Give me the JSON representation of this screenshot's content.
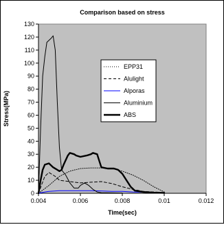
{
  "chart_data": {
    "type": "line",
    "title": "Comparison based on stress",
    "xlabel": "Time(sec)",
    "ylabel": "Stress(MPa)",
    "xlim": [
      0.004,
      0.012
    ],
    "ylim": [
      0,
      130
    ],
    "x_ticks": [
      "0.004",
      "0.006",
      "0.008",
      "0.01",
      "0.012"
    ],
    "y_ticks": [
      "0",
      "10",
      "20",
      "30",
      "40",
      "50",
      "60",
      "70",
      "80",
      "90",
      "100",
      "110",
      "120",
      "130"
    ],
    "grid": false,
    "legend_position": "right",
    "plot_background": "#c0c0c0",
    "series": [
      {
        "name": "EPP31",
        "style": "dotted",
        "color": "#000000",
        "points": [
          [
            0.004,
            0
          ],
          [
            0.0045,
            6
          ],
          [
            0.005,
            13
          ],
          [
            0.0055,
            17
          ],
          [
            0.006,
            19
          ],
          [
            0.0065,
            19.5
          ],
          [
            0.007,
            19.5
          ],
          [
            0.0075,
            19
          ],
          [
            0.008,
            17
          ],
          [
            0.0085,
            14
          ],
          [
            0.009,
            10
          ],
          [
            0.0095,
            5
          ],
          [
            0.01,
            1
          ]
        ]
      },
      {
        "name": "Alulight",
        "style": "dashed",
        "color": "#000000",
        "points": [
          [
            0.004,
            0
          ],
          [
            0.0043,
            13
          ],
          [
            0.0045,
            16
          ],
          [
            0.0048,
            13
          ],
          [
            0.005,
            10
          ],
          [
            0.0055,
            9
          ],
          [
            0.006,
            8
          ],
          [
            0.0065,
            8.5
          ],
          [
            0.007,
            9
          ],
          [
            0.0075,
            7.5
          ],
          [
            0.008,
            5
          ],
          [
            0.0085,
            3
          ],
          [
            0.009,
            1.5
          ],
          [
            0.0095,
            1
          ],
          [
            0.01,
            0.5
          ]
        ]
      },
      {
        "name": "Alporas",
        "style": "solid",
        "color": "#0000ff",
        "points": [
          [
            0.004,
            0
          ],
          [
            0.0043,
            1
          ],
          [
            0.0045,
            1.5
          ],
          [
            0.005,
            2
          ],
          [
            0.0055,
            2
          ],
          [
            0.006,
            2
          ],
          [
            0.0065,
            2
          ],
          [
            0.007,
            1.8
          ],
          [
            0.0075,
            1.5
          ],
          [
            0.008,
            1.5
          ],
          [
            0.0085,
            1
          ],
          [
            0.009,
            0.8
          ],
          [
            0.0095,
            0.5
          ],
          [
            0.01,
            0.3
          ]
        ]
      },
      {
        "name": "Aluminium",
        "style": "solid",
        "color": "#000000",
        "points": [
          [
            0.004,
            0
          ],
          [
            0.0041,
            50
          ],
          [
            0.0042,
            90
          ],
          [
            0.0043,
            105
          ],
          [
            0.0044,
            116
          ],
          [
            0.0046,
            119
          ],
          [
            0.0047,
            121
          ],
          [
            0.0048,
            110
          ],
          [
            0.0049,
            70
          ],
          [
            0.005,
            35
          ],
          [
            0.0051,
            18
          ],
          [
            0.0053,
            14
          ],
          [
            0.0055,
            8
          ],
          [
            0.0057,
            4
          ],
          [
            0.0059,
            4
          ],
          [
            0.006,
            6
          ],
          [
            0.0062,
            8
          ],
          [
            0.0064,
            6
          ],
          [
            0.0066,
            3
          ],
          [
            0.0068,
            1
          ],
          [
            0.007,
            0.5
          ],
          [
            0.0075,
            0.3
          ],
          [
            0.008,
            0.2
          ]
        ]
      },
      {
        "name": "ABS",
        "style": "thick",
        "color": "#000000",
        "points": [
          [
            0.004,
            0
          ],
          [
            0.0041,
            10
          ],
          [
            0.0042,
            18
          ],
          [
            0.0043,
            22
          ],
          [
            0.0045,
            23
          ],
          [
            0.0047,
            20
          ],
          [
            0.0049,
            18
          ],
          [
            0.005,
            17
          ],
          [
            0.0051,
            18
          ],
          [
            0.0052,
            22
          ],
          [
            0.0054,
            29
          ],
          [
            0.0055,
            31
          ],
          [
            0.0057,
            30
          ],
          [
            0.0058,
            29
          ],
          [
            0.006,
            28
          ],
          [
            0.0063,
            29
          ],
          [
            0.0065,
            30
          ],
          [
            0.0066,
            31
          ],
          [
            0.0068,
            30
          ],
          [
            0.0069,
            25
          ],
          [
            0.007,
            20
          ],
          [
            0.0073,
            19
          ],
          [
            0.0076,
            19
          ],
          [
            0.0078,
            18
          ],
          [
            0.008,
            15
          ],
          [
            0.0082,
            10
          ],
          [
            0.0084,
            5
          ],
          [
            0.0086,
            2
          ],
          [
            0.009,
            1
          ],
          [
            0.0095,
            0.5
          ],
          [
            0.01,
            0.3
          ]
        ]
      }
    ]
  }
}
